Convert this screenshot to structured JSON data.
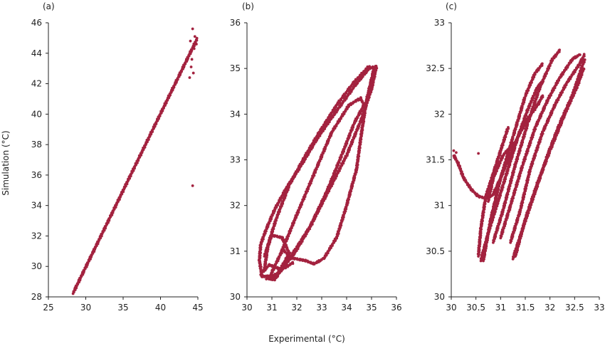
{
  "xlabel": "Experimental (°C)",
  "ylabel": "Simulation (°C)",
  "marker_color": "#A3223F",
  "chart_data": [
    {
      "type": "scatter",
      "panel_label": "(a)",
      "xlim": [
        25,
        45
      ],
      "ylim": [
        28,
        46
      ],
      "xticks": [
        25,
        30,
        35,
        40,
        45
      ],
      "yticks": [
        28,
        30,
        32,
        34,
        36,
        38,
        40,
        42,
        44,
        46
      ],
      "dense_paths": [
        [
          [
            28.3,
            28.25
          ],
          [
            44.9,
            44.95
          ]
        ]
      ],
      "points": [
        [
          44.3,
          45.6
        ],
        [
          44.0,
          44.8
        ],
        [
          44.5,
          44.3
        ],
        [
          44.2,
          43.6
        ],
        [
          43.9,
          42.4
        ],
        [
          44.4,
          42.7
        ],
        [
          44.1,
          43.1
        ],
        [
          44.6,
          45.1
        ],
        [
          44.3,
          35.3
        ],
        [
          44.8,
          44.6
        ]
      ],
      "grid": false
    },
    {
      "type": "scatter",
      "panel_label": "(b)",
      "xlim": [
        30,
        36
      ],
      "ylim": [
        30,
        36
      ],
      "xticks": [
        30,
        31,
        32,
        33,
        34,
        35,
        36
      ],
      "yticks": [
        30,
        31,
        32,
        33,
        34,
        35,
        36
      ],
      "dense_paths": [
        [
          [
            30.9,
            30.4
          ],
          [
            31.3,
            30.55
          ],
          [
            31.9,
            30.95
          ],
          [
            32.5,
            31.5
          ],
          [
            33.2,
            32.3
          ],
          [
            33.8,
            33.1
          ],
          [
            34.3,
            33.8
          ],
          [
            34.7,
            34.2
          ],
          [
            34.55,
            34.35
          ],
          [
            34.1,
            34.2
          ],
          [
            33.4,
            33.6
          ],
          [
            32.7,
            32.7
          ],
          [
            32.0,
            31.8
          ],
          [
            31.4,
            31.0
          ],
          [
            31.05,
            30.6
          ],
          [
            30.9,
            30.4
          ]
        ],
        [
          [
            30.6,
            30.45
          ],
          [
            30.5,
            30.8
          ],
          [
            30.55,
            31.15
          ],
          [
            30.75,
            31.45
          ],
          [
            31.1,
            31.9
          ],
          [
            31.6,
            32.4
          ],
          [
            32.2,
            32.9
          ],
          [
            32.8,
            33.45
          ],
          [
            33.5,
            34.0
          ],
          [
            34.3,
            34.6
          ],
          [
            34.9,
            35.0
          ],
          [
            35.2,
            35.05
          ],
          [
            35.0,
            34.55
          ],
          [
            34.6,
            33.9
          ],
          [
            34.0,
            33.1
          ],
          [
            33.3,
            32.35
          ],
          [
            32.6,
            31.6
          ],
          [
            31.9,
            31.0
          ],
          [
            31.2,
            30.45
          ],
          [
            30.6,
            30.45
          ]
        ],
        [
          [
            30.7,
            30.6
          ],
          [
            30.85,
            31.15
          ],
          [
            31.2,
            31.75
          ],
          [
            31.7,
            32.45
          ],
          [
            32.3,
            33.05
          ],
          [
            32.9,
            33.6
          ],
          [
            33.6,
            34.2
          ],
          [
            34.3,
            34.7
          ],
          [
            34.9,
            35.05
          ]
        ],
        [
          [
            31.4,
            31.05
          ],
          [
            31.8,
            30.85
          ],
          [
            32.3,
            30.8
          ],
          [
            32.7,
            30.72
          ],
          [
            33.1,
            30.85
          ],
          [
            33.6,
            31.3
          ],
          [
            34.0,
            32.0
          ],
          [
            34.4,
            32.8
          ],
          [
            34.6,
            33.6
          ],
          [
            34.8,
            34.3
          ],
          [
            35.1,
            35.0
          ]
        ],
        [
          [
            30.7,
            30.9
          ],
          [
            31.0,
            31.35
          ],
          [
            31.4,
            31.3
          ],
          [
            31.7,
            30.95
          ],
          [
            31.1,
            30.38
          ],
          [
            30.8,
            30.4
          ]
        ],
        [
          [
            30.55,
            30.5
          ],
          [
            30.9,
            30.7
          ],
          [
            31.4,
            30.6
          ],
          [
            31.85,
            30.75
          ]
        ]
      ],
      "points": [],
      "grid": false
    },
    {
      "type": "scatter",
      "panel_label": "(c)",
      "xlim": [
        30,
        33
      ],
      "ylim": [
        30,
        33
      ],
      "xticks": [
        30,
        30.5,
        31,
        31.5,
        32,
        32.5,
        33
      ],
      "yticks": [
        30,
        30.5,
        31,
        31.5,
        32,
        32.5,
        33
      ],
      "dense_paths": [
        [
          [
            30.05,
            31.55
          ],
          [
            30.15,
            31.45
          ],
          [
            30.25,
            31.3
          ],
          [
            30.4,
            31.18
          ],
          [
            30.55,
            31.1
          ],
          [
            30.7,
            31.08
          ],
          [
            30.85,
            31.12
          ],
          [
            31.0,
            31.3
          ],
          [
            31.15,
            31.5
          ],
          [
            31.35,
            31.75
          ],
          [
            31.55,
            31.95
          ],
          [
            31.75,
            32.1
          ],
          [
            31.85,
            32.2
          ]
        ],
        [
          [
            30.6,
            30.4
          ],
          [
            30.75,
            30.7
          ],
          [
            30.95,
            31.05
          ],
          [
            31.15,
            31.4
          ],
          [
            31.35,
            31.75
          ],
          [
            31.55,
            32.05
          ],
          [
            31.75,
            32.3
          ],
          [
            31.85,
            32.35
          ]
        ],
        [
          [
            30.65,
            30.4
          ],
          [
            30.8,
            30.85
          ],
          [
            31.0,
            31.3
          ],
          [
            31.25,
            31.75
          ],
          [
            31.5,
            32.2
          ],
          [
            31.7,
            32.45
          ],
          [
            31.85,
            32.55
          ]
        ],
        [
          [
            30.85,
            30.6
          ],
          [
            31.05,
            30.95
          ],
          [
            31.3,
            31.45
          ],
          [
            31.55,
            31.9
          ],
          [
            31.8,
            32.3
          ],
          [
            32.05,
            32.6
          ],
          [
            32.2,
            32.7
          ]
        ],
        [
          [
            31.0,
            30.65
          ],
          [
            31.2,
            31.0
          ],
          [
            31.45,
            31.45
          ],
          [
            31.7,
            31.85
          ],
          [
            31.95,
            32.15
          ],
          [
            32.2,
            32.4
          ],
          [
            32.45,
            32.6
          ],
          [
            32.6,
            32.65
          ]
        ],
        [
          [
            31.2,
            30.6
          ],
          [
            31.4,
            30.95
          ],
          [
            31.6,
            31.4
          ],
          [
            31.85,
            31.8
          ],
          [
            32.1,
            32.1
          ],
          [
            32.35,
            32.35
          ],
          [
            32.6,
            32.55
          ],
          [
            32.7,
            32.65
          ]
        ],
        [
          [
            31.25,
            30.42
          ],
          [
            31.45,
            30.75
          ],
          [
            31.7,
            31.15
          ],
          [
            31.95,
            31.55
          ],
          [
            32.2,
            31.9
          ],
          [
            32.45,
            32.2
          ],
          [
            32.7,
            32.6
          ]
        ],
        [
          [
            31.3,
            30.45
          ],
          [
            31.5,
            30.85
          ],
          [
            31.75,
            31.25
          ],
          [
            32.0,
            31.6
          ],
          [
            32.3,
            32.0
          ],
          [
            32.55,
            32.3
          ],
          [
            32.68,
            32.5
          ]
        ],
        [
          [
            30.55,
            30.45
          ],
          [
            30.6,
            30.75
          ],
          [
            30.7,
            31.1
          ],
          [
            30.85,
            31.35
          ],
          [
            31.0,
            31.6
          ],
          [
            31.15,
            31.85
          ]
        ],
        [
          [
            30.75,
            31.05
          ],
          [
            30.85,
            31.3
          ],
          [
            31.05,
            31.55
          ],
          [
            31.3,
            31.7
          ]
        ]
      ],
      "points": [
        [
          30.55,
          31.57
        ],
        [
          30.05,
          31.6
        ],
        [
          30.1,
          31.58
        ]
      ],
      "grid": false
    }
  ]
}
